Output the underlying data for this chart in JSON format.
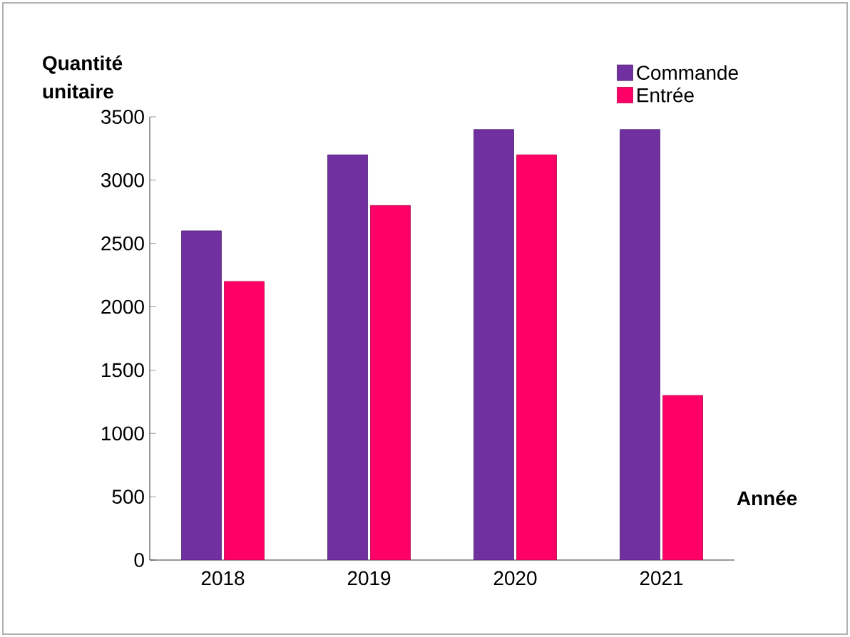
{
  "chart_data": {
    "type": "bar",
    "xlabel": "Année",
    "ylabel": "Quantité unitaire",
    "categories": [
      "2018",
      "2019",
      "2020",
      "2021"
    ],
    "series": [
      {
        "name": "Commande",
        "color": "#7030a0",
        "values": [
          2600,
          3200,
          3400,
          3400
        ]
      },
      {
        "name": "Entrée",
        "color": "#ff0066",
        "values": [
          2200,
          2800,
          3200,
          1300
        ]
      }
    ],
    "ylim": [
      0,
      3500
    ],
    "yticks": [
      0,
      500,
      1000,
      1500,
      2000,
      2500,
      3000,
      3500
    ],
    "grid": false,
    "legend": "top right"
  }
}
